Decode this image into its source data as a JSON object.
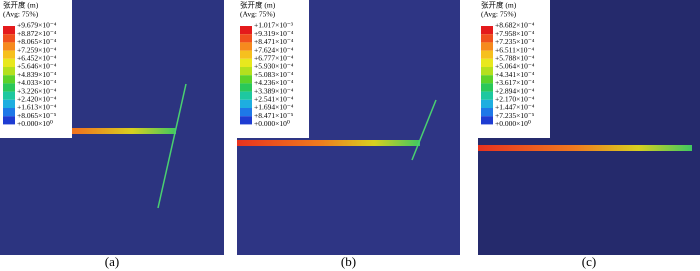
{
  "panels": [
    {
      "legend_title": "张开度 (m)",
      "legend_subtitle": "(Avg: 75%)",
      "legend_labels": [
        "+9.679×10⁻⁴",
        "+8.872×10⁻⁴",
        "+8.065×10⁻⁴",
        "+7.259×10⁻⁴",
        "+6.452×10⁻⁴",
        "+5.646×10⁻⁴",
        "+4.839×10⁻⁴",
        "+4.033×10⁻⁴",
        "+3.226×10⁻⁴",
        "+2.420×10⁻⁴",
        "+1.613×10⁻⁴",
        "+8.065×10⁻⁵",
        "+0.000×10⁰"
      ],
      "caption": "(a)"
    },
    {
      "legend_title": "张开度 (m)",
      "legend_subtitle": "(Avg: 75%)",
      "legend_labels": [
        "+1.017×10⁻³",
        "+9.319×10⁻⁴",
        "+8.471×10⁻⁴",
        "+7.624×10⁻⁴",
        "+6.777×10⁻⁴",
        "+5.930×10⁻⁴",
        "+5.083×10⁻⁴",
        "+4.236×10⁻⁴",
        "+3.389×10⁻⁴",
        "+2.541×10⁻⁴",
        "+1.694×10⁻⁴",
        "+8.471×10⁻⁵",
        "+0.000×10⁰"
      ],
      "caption": "(b)"
    },
    {
      "legend_title": "张开度 (m)",
      "legend_subtitle": "(Avg: 75%)",
      "legend_labels": [
        "+8.682×10⁻⁴",
        "+7.958×10⁻⁴",
        "+7.235×10⁻⁴",
        "+6.511×10⁻⁴",
        "+5.788×10⁻⁴",
        "+5.064×10⁻⁴",
        "+4.341×10⁻⁴",
        "+3.617×10⁻⁴",
        "+2.894×10⁻⁴",
        "+2.170×10⁻⁴",
        "+1.447×10⁻⁴",
        "+7.235×10⁻⁵",
        "+0.000×10⁰"
      ],
      "caption": "(c)"
    }
  ]
}
